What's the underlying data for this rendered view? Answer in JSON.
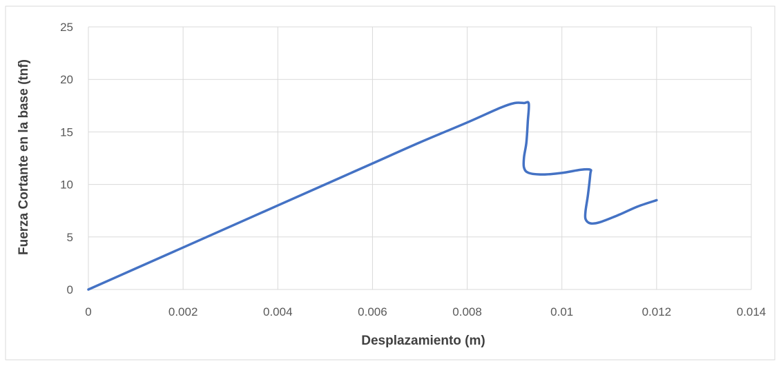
{
  "chart_data": {
    "type": "line",
    "title": "",
    "xlabel": "Desplazamiento (m)",
    "ylabel": "Fuerza Cortante en la base (tnf)",
    "xlim": [
      0,
      0.014
    ],
    "ylim": [
      0,
      25
    ],
    "x_ticks": [
      0,
      0.002,
      0.004,
      0.006,
      0.008,
      0.01,
      0.012,
      0.014
    ],
    "x_tick_labels": [
      "0",
      "0.002",
      "0.004",
      "0.006",
      "0.008",
      "0.01",
      "0.012",
      "0.014"
    ],
    "y_ticks": [
      0,
      5,
      10,
      15,
      20,
      25
    ],
    "y_tick_labels": [
      "0",
      "5",
      "10",
      "15",
      "20",
      "25"
    ],
    "grid": true,
    "legend": "none",
    "colors": {
      "line": "#4472C4",
      "grid": "#D9D9D9",
      "frame": "#D9D9D9"
    },
    "series": [
      {
        "x": [
          0,
          0.001,
          0.002,
          0.003,
          0.004,
          0.005,
          0.006,
          0.007,
          0.008,
          0.0087,
          0.009,
          0.0092,
          0.0093,
          0.00928,
          0.00925,
          0.0092,
          0.0092,
          0.0093,
          0.0096,
          0.01,
          0.0104,
          0.0106,
          0.0106,
          0.01055,
          0.0105,
          0.0105,
          0.0106,
          0.0108,
          0.0112,
          0.0116,
          0.012
        ],
        "y": [
          0,
          2.0,
          4.0,
          6.0,
          8.0,
          10.0,
          12.0,
          14.0,
          15.9,
          17.3,
          17.75,
          17.75,
          17.7,
          16.0,
          14.0,
          12.6,
          11.6,
          11.1,
          10.95,
          11.1,
          11.4,
          11.4,
          11.0,
          9.0,
          7.5,
          6.7,
          6.3,
          6.4,
          7.1,
          7.9,
          8.5
        ]
      }
    ]
  }
}
